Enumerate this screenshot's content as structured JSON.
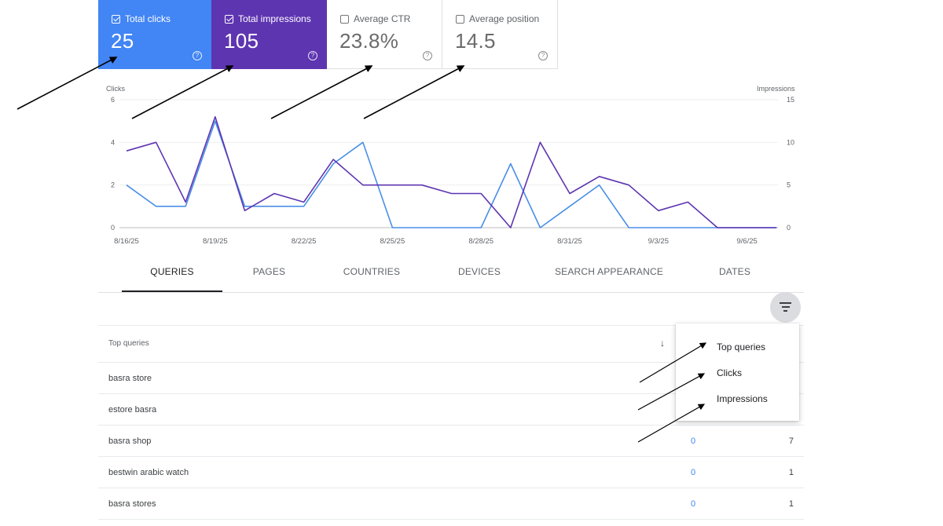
{
  "metrics": [
    {
      "label": "Total clicks",
      "value": "25",
      "checked": true,
      "color": "#4285f4"
    },
    {
      "label": "Total impressions",
      "value": "105",
      "checked": true,
      "color": "#5e35b1"
    },
    {
      "label": "Average CTR",
      "value": "23.8%",
      "checked": false
    },
    {
      "label": "Average position",
      "value": "14.5",
      "checked": false
    }
  ],
  "chart": {
    "left_axis_title": "Clicks",
    "right_axis_title": "Impressions"
  },
  "chart_data": {
    "type": "line",
    "x": [
      "8/16/25",
      "8/17/25",
      "8/18/25",
      "8/19/25",
      "8/20/25",
      "8/21/25",
      "8/22/25",
      "8/23/25",
      "8/24/25",
      "8/25/25",
      "8/26/25",
      "8/27/25",
      "8/28/25",
      "8/29/25",
      "8/30/25",
      "8/31/25",
      "9/1/25",
      "9/2/25",
      "9/3/25",
      "9/4/25",
      "9/5/25",
      "9/6/25",
      "9/7/25"
    ],
    "x_tick_labels": [
      "8/16/25",
      "8/19/25",
      "8/22/25",
      "8/25/25",
      "8/28/25",
      "8/31/25",
      "9/3/25",
      "9/6/25"
    ],
    "series": [
      {
        "name": "Clicks",
        "axis": "left",
        "color": "#4a8fe7",
        "values": [
          2,
          1,
          1,
          5,
          1,
          1,
          1,
          3,
          4,
          0,
          0,
          0,
          0,
          3,
          0,
          1,
          2,
          0,
          0,
          0,
          0,
          0,
          0
        ]
      },
      {
        "name": "Impressions",
        "axis": "right",
        "color": "#5e35b1",
        "values": [
          9,
          10,
          3,
          13,
          2,
          4,
          3,
          8,
          5,
          5,
          5,
          4,
          4,
          0,
          10,
          4,
          6,
          5,
          2,
          3,
          0,
          0,
          0
        ]
      }
    ],
    "y_left": {
      "ticks": [
        0,
        2,
        4,
        6
      ],
      "range": [
        0,
        6
      ]
    },
    "y_right": {
      "ticks": [
        0,
        5,
        10,
        15
      ],
      "range": [
        0,
        15
      ]
    },
    "grid": true
  },
  "tabs": [
    "QUERIES",
    "PAGES",
    "COUNTRIES",
    "DEVICES",
    "SEARCH APPEARANCE",
    "DATES"
  ],
  "table": {
    "header": "Top queries",
    "rows": [
      {
        "query": "basra store",
        "clicks": "",
        "impressions": ""
      },
      {
        "query": "estore basra",
        "clicks": "",
        "impressions": ""
      },
      {
        "query": "basra shop",
        "clicks": "0",
        "impressions": "7"
      },
      {
        "query": "bestwin arabic watch",
        "clicks": "0",
        "impressions": "1"
      },
      {
        "query": "basra stores",
        "clicks": "0",
        "impressions": "1"
      }
    ]
  },
  "filter_menu": [
    "Top queries",
    "Clicks",
    "Impressions"
  ],
  "icons": {
    "filter": "filter-list-icon",
    "help": "help-circle-icon",
    "sort": "arrow-down-icon"
  }
}
